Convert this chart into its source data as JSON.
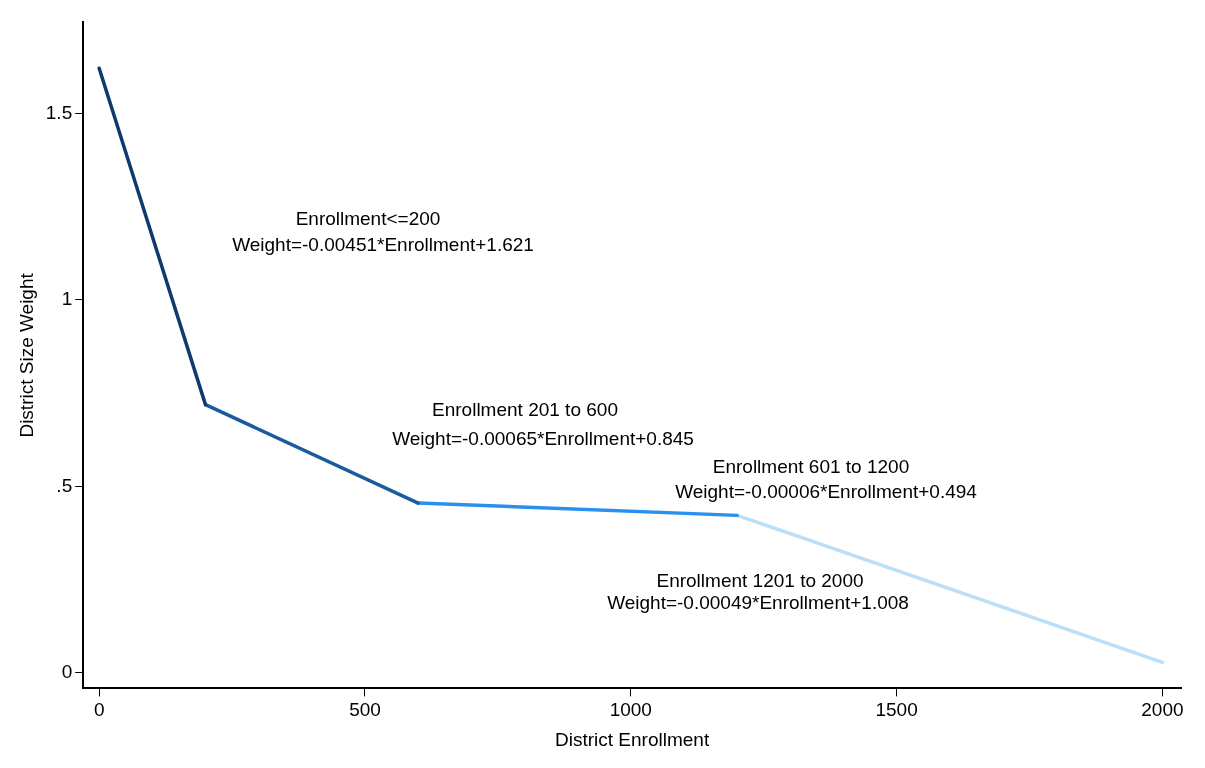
{
  "chart_data": {
    "type": "line",
    "xlabel": "District Enrollment",
    "ylabel": "District Size Weight",
    "xlim": [
      -30,
      2035
    ],
    "ylim": [
      -0.042,
      1.744
    ],
    "xticks": [
      0,
      500,
      1000,
      1500,
      2000
    ],
    "yticks": [
      0,
      {
        "value": 0.5,
        "label": ".5"
      },
      1,
      1.5
    ],
    "grid": false,
    "legend": false,
    "marker": "none",
    "line_style": "solid",
    "series": [
      {
        "color": "#0e3a6c",
        "x": [
          0,
          200
        ],
        "values": [
          1.621,
          0.719
        ]
      },
      {
        "color": "#1a5a9e",
        "x": [
          200,
          600
        ],
        "values": [
          0.719,
          0.455
        ]
      },
      {
        "color": "#2b8ff0",
        "x": [
          600,
          1200
        ],
        "values": [
          0.455,
          0.422
        ]
      },
      {
        "color": "#bcdff8",
        "x": [
          1200,
          2000
        ],
        "values": [
          0.422,
          0.028
        ]
      }
    ],
    "annotations": [
      "Enrollment<=200",
      "Weight=-0.00451*Enrollment+1.621",
      "Enrollment 201 to 600",
      "Weight=-0.00065*Enrollment+0.845",
      "Enrollment 601 to 1200",
      "Weight=-0.00006*Enrollment+0.494",
      "Enrollment 1201 to 2000",
      "Weight=-0.00049*Enrollment+1.008"
    ]
  }
}
